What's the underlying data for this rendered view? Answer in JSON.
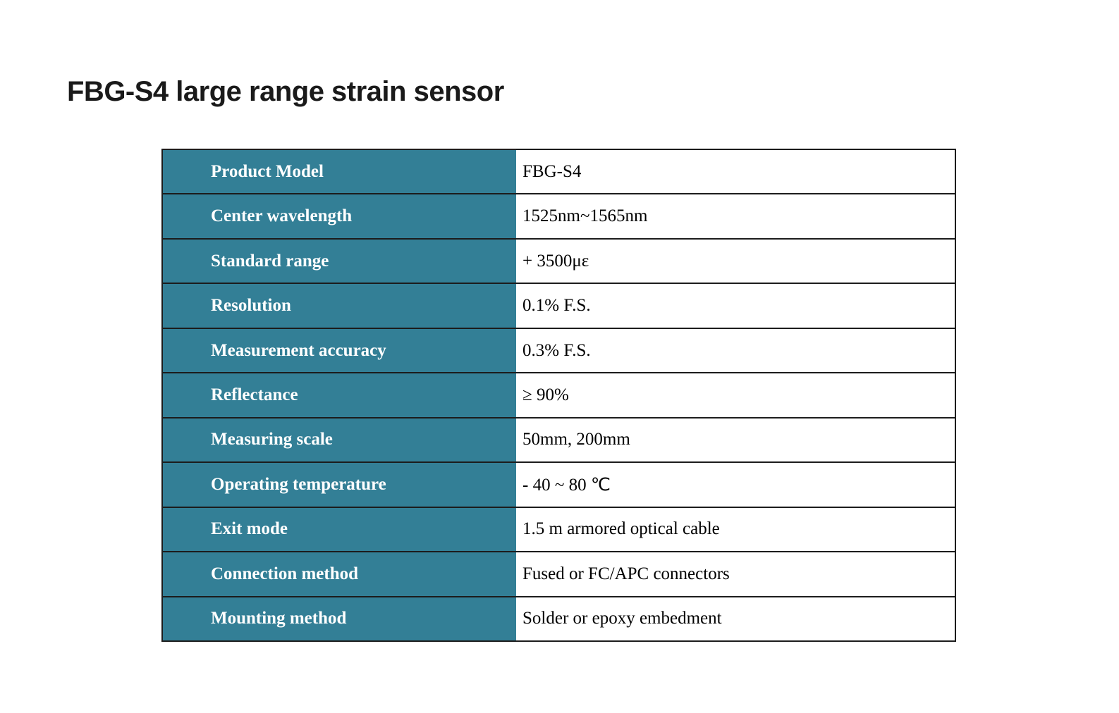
{
  "page": {
    "background_color": "#ffffff"
  },
  "title": "FBG-S4 large range strain sensor",
  "title_color": "#1a1a1a",
  "table": {
    "accent_color": "#337f96",
    "border_color": "#1c1c1c",
    "label_text_color": "#ffffff",
    "value_text_color": "#000000",
    "rows": [
      {
        "label": "Product Model",
        "value": "FBG-S4"
      },
      {
        "label": "Center wavelength",
        "value": "1525nm~1565nm"
      },
      {
        "label": "Standard range",
        "value": "+ 3500με"
      },
      {
        "label": "Resolution",
        "value": "0.1% F.S."
      },
      {
        "label": "Measurement accuracy",
        "value": "0.3% F.S."
      },
      {
        "label": "Reflectance",
        "value": "≥ 90%"
      },
      {
        "label": "Measuring scale",
        "value": "50mm, 200mm"
      },
      {
        "label": "Operating temperature",
        "value": "- 40 ~ 80 ℃"
      },
      {
        "label": "Exit mode",
        "value": "1.5 m armored optical cable"
      },
      {
        "label": "Connection method",
        "value": "Fused or FC/APC connectors"
      },
      {
        "label": "Mounting method",
        "value": "Solder or epoxy embedment"
      }
    ]
  }
}
